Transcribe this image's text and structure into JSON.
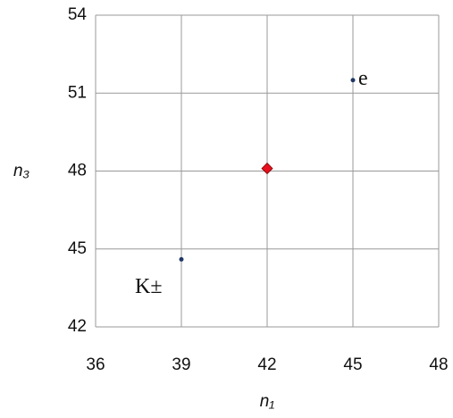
{
  "chart_data": {
    "type": "scatter",
    "x_label": "n₁",
    "y_label": "n₃",
    "x": [
      39,
      42,
      45
    ],
    "values": [
      44.6,
      48.1,
      51.5
    ],
    "point_labels": [
      "K±",
      null,
      "e"
    ],
    "colors": [
      "#1f3864",
      "#e8101e",
      "#1f3864"
    ],
    "markers": [
      "circle",
      "diamond",
      "circle"
    ],
    "xlim": [
      36,
      48
    ],
    "xticks": [
      36,
      39,
      42,
      45,
      48
    ],
    "ylim": [
      42,
      54
    ],
    "yticks": [
      42,
      45,
      48,
      51,
      54
    ],
    "grid": true
  }
}
